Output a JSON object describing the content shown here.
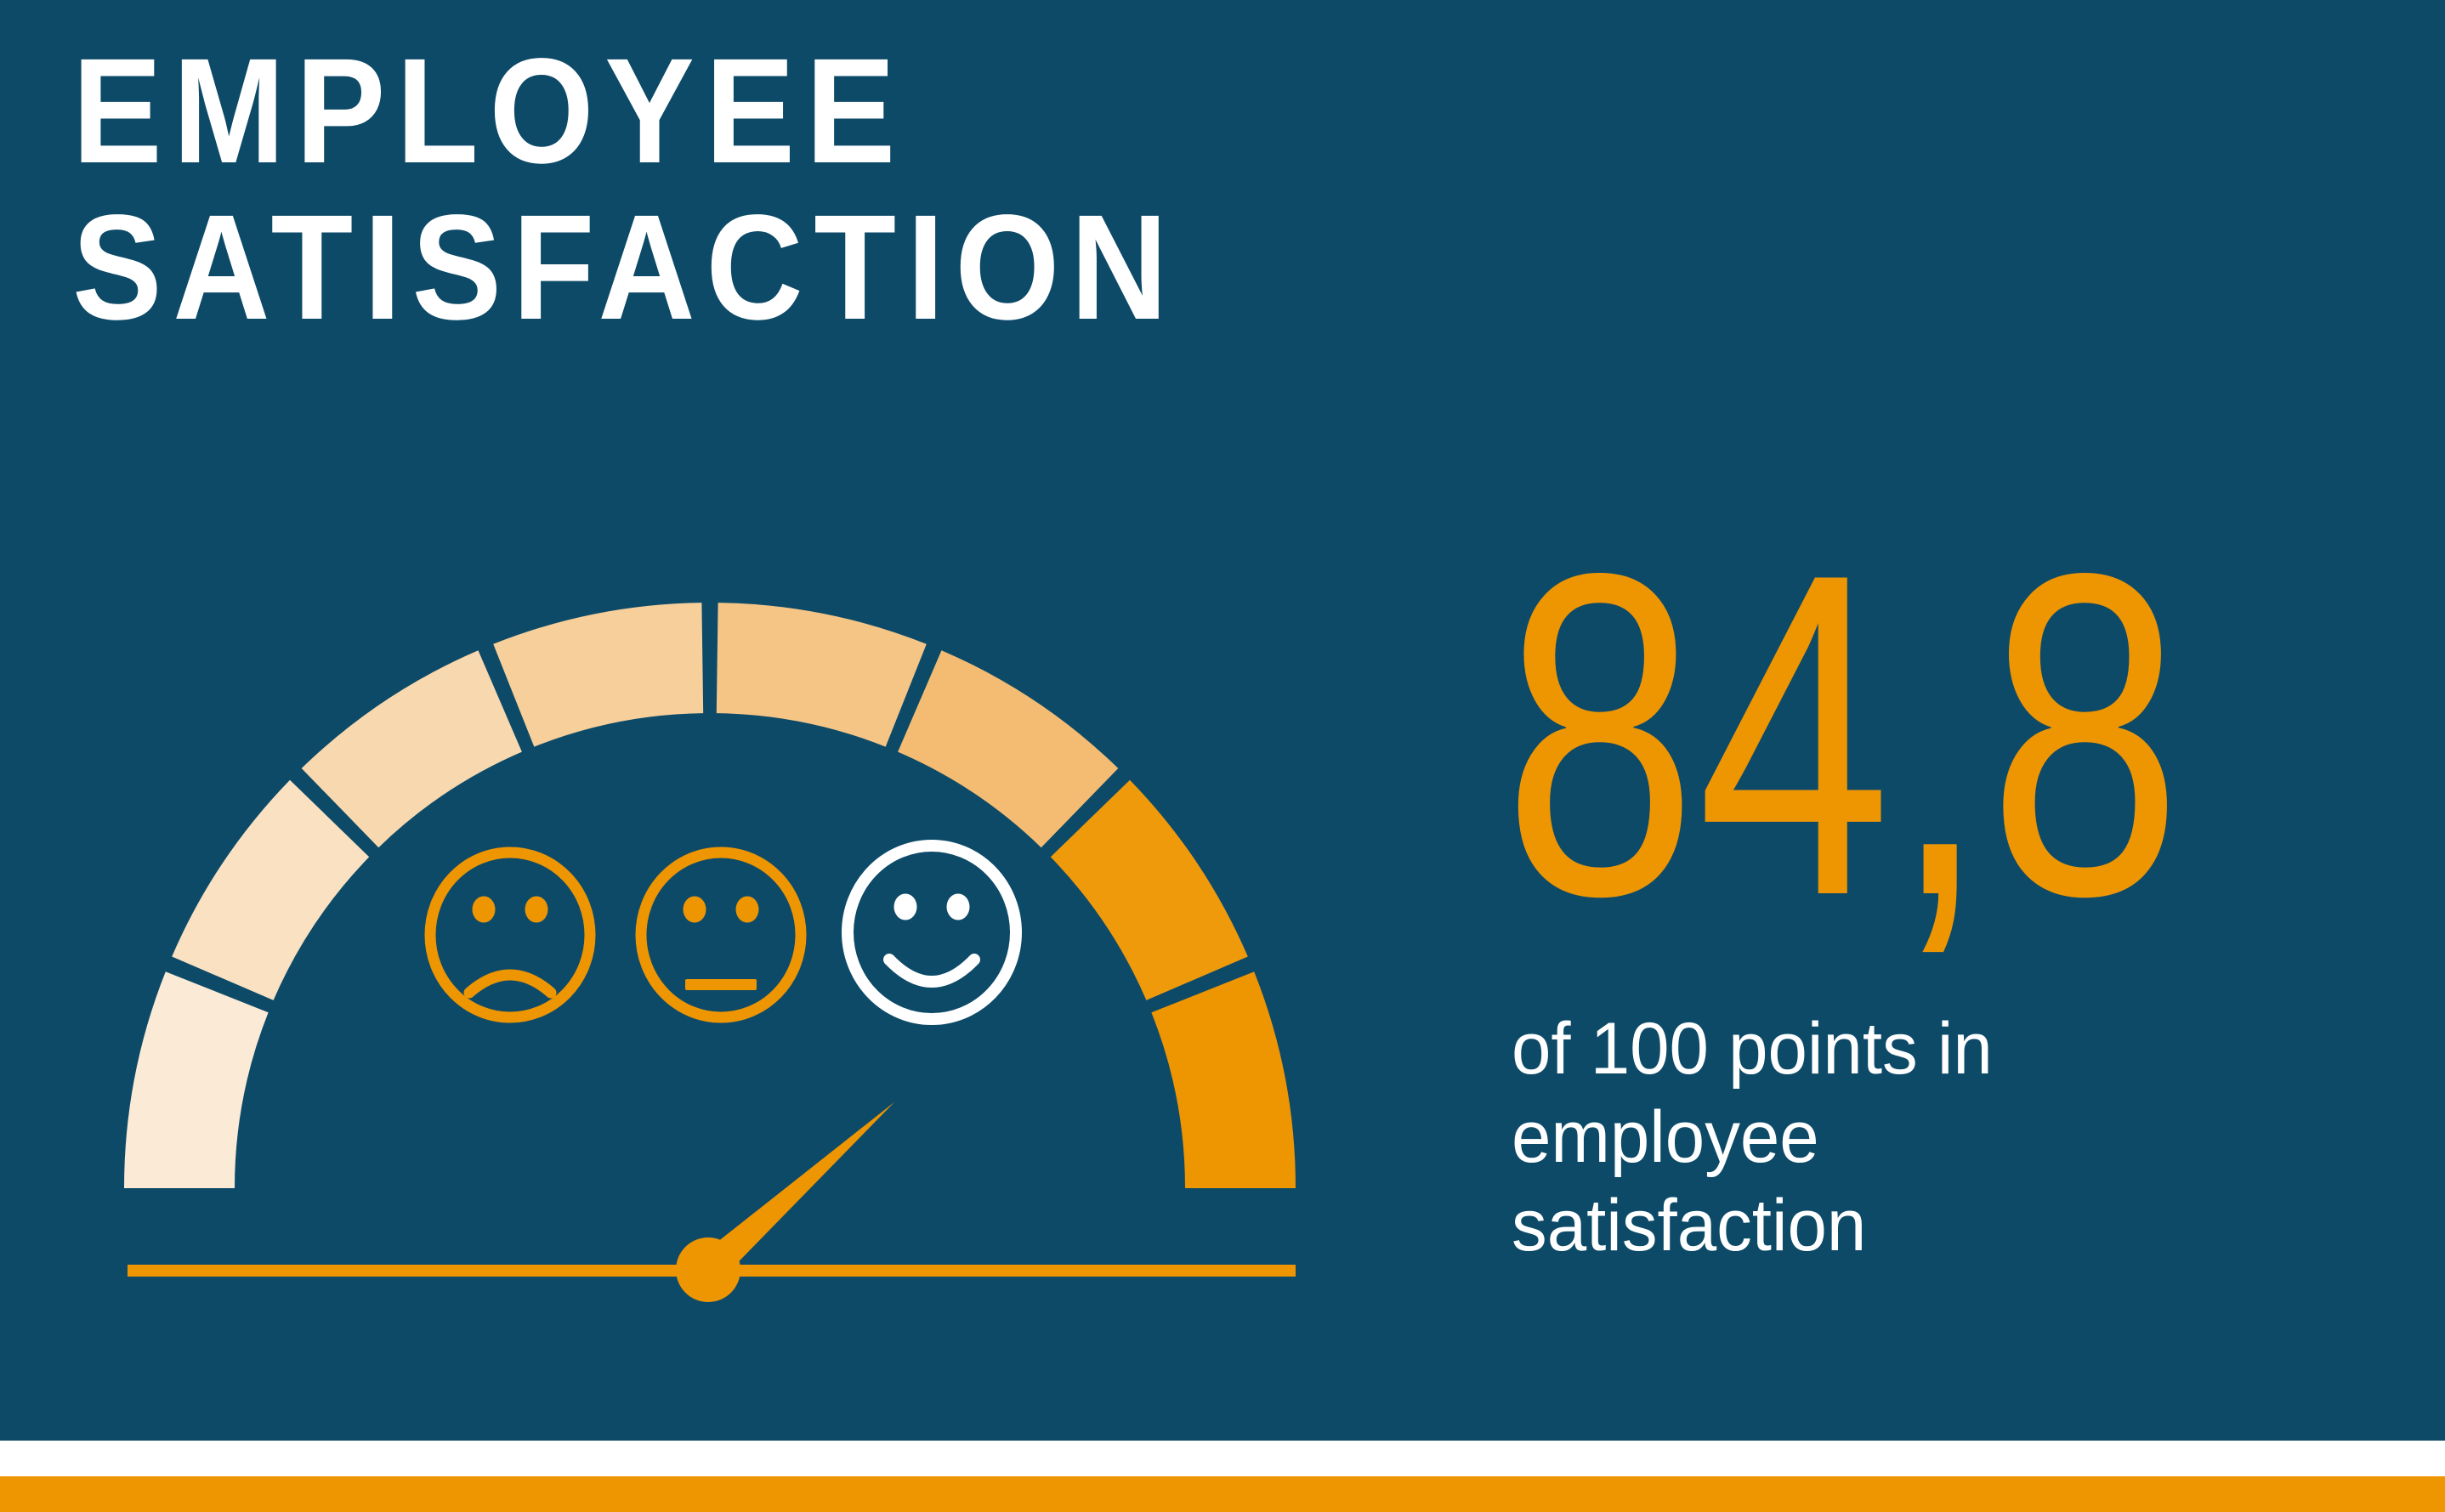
{
  "title": {
    "line1": "EMPLOYEE",
    "line2": "SATISFACTION"
  },
  "metric": {
    "value": "84,8",
    "caption_lines": [
      "of 100 points in",
      "employee",
      "satisfaction"
    ]
  },
  "colors": {
    "background": "#0D4A68",
    "accent_orange": "#EE9502",
    "white": "#FFFFFF"
  },
  "chart_data": {
    "type": "gauge",
    "title": "Employee satisfaction",
    "value": 84.8,
    "max": 100,
    "value_label": "84,8",
    "caption": "of 100 points in employee satisfaction",
    "scale_degrees": 180,
    "segment_colors": [
      "#FBEAD5",
      "#F9E1C1",
      "#F8D8AE",
      "#F6CF9A",
      "#F5C586",
      "#F3BC72",
      "#EF9A0B",
      "#EE9502"
    ],
    "faces": [
      {
        "type": "sad",
        "color": "#EE9502"
      },
      {
        "type": "neutral",
        "color": "#EE9502"
      },
      {
        "type": "happy",
        "color": "#FFFFFF"
      }
    ],
    "needle_color": "#EE9502",
    "baseline_color": "#EE9502"
  },
  "footer": {
    "band_colors": [
      "#FFFFFF",
      "#EE9502"
    ]
  }
}
